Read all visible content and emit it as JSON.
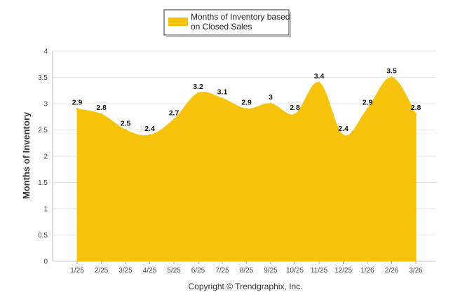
{
  "chart_data": {
    "type": "area",
    "title": "",
    "xlabel": "",
    "ylabel": "Months of Inventory",
    "categories": [
      "1/25",
      "2/25",
      "3/25",
      "4/25",
      "5/25",
      "6/25",
      "7/25",
      "8/25",
      "9/25",
      "10/25",
      "11/25",
      "12/25",
      "1/26",
      "2/26",
      "3/26"
    ],
    "series": [
      {
        "name": "Months of Inventory based on Closed Sales",
        "values": [
          2.9,
          2.8,
          2.5,
          2.4,
          2.7,
          3.2,
          3.1,
          2.9,
          3,
          2.8,
          3.4,
          2.4,
          2.9,
          3.5,
          2.8
        ]
      }
    ],
    "legend_lines": [
      "Months of Inventory based",
      "on Closed Sales"
    ],
    "ylim": [
      0,
      4
    ],
    "yticks": [
      0,
      0.5,
      1,
      1.5,
      2,
      2.5,
      3,
      3.5,
      4
    ],
    "ytick_labels": [
      "0",
      "0.5",
      "1",
      "1.5",
      "2",
      "2.5",
      "3",
      "3.5",
      "4"
    ],
    "data_labels": [
      "2.9",
      "2.8",
      "2.5",
      "2.4",
      "2.7",
      "3.2",
      "3.1",
      "2.9",
      "3",
      "2.8",
      "3.4",
      "2.4",
      "2.9",
      "3.5",
      "2.8"
    ],
    "grid": true,
    "legend_position": "top-center",
    "colors": {
      "fill": "#F7C30A",
      "grid": "#E6E6E6"
    }
  },
  "copyright": "Copyright © Trendgraphix, Inc."
}
